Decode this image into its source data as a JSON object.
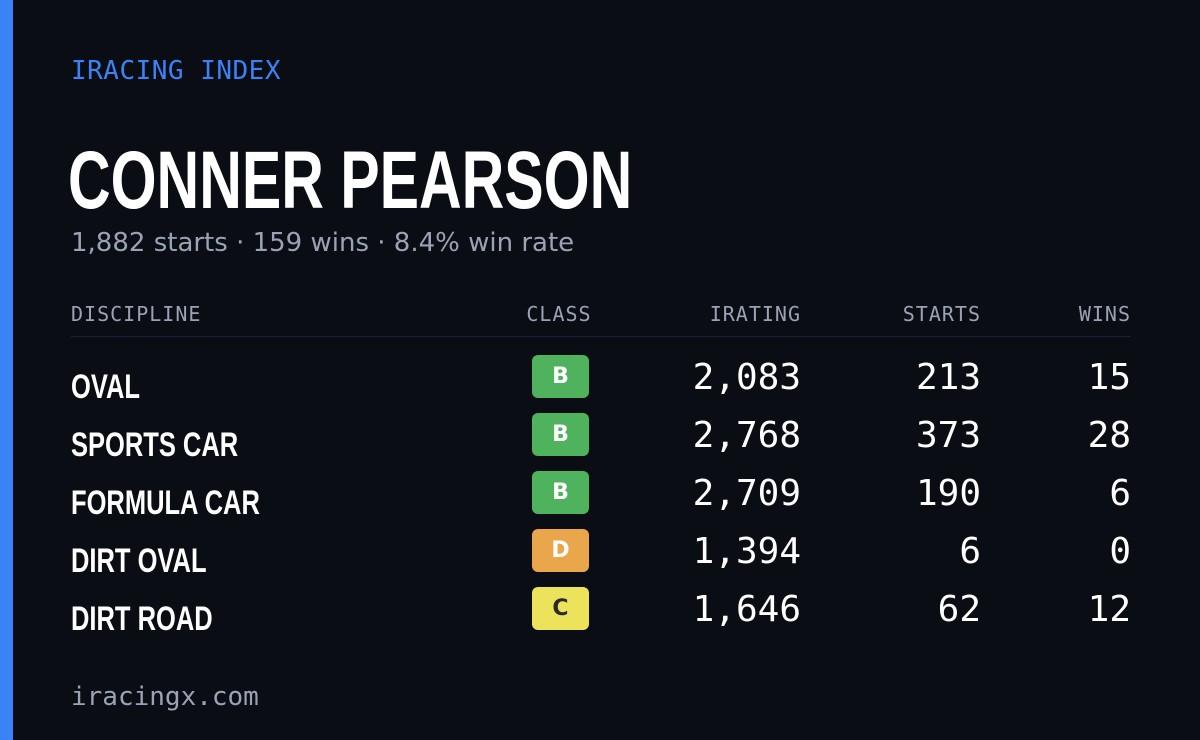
{
  "brand": "IRACING INDEX",
  "driver": {
    "name": "CONNER PEARSON",
    "summary": "1,882 starts · 159 wins · 8.4% win rate"
  },
  "table": {
    "headers": {
      "discipline": "DISCIPLINE",
      "class": "CLASS",
      "irating": "IRATING",
      "starts": "STARTS",
      "wins": "WINS"
    },
    "rows": [
      {
        "discipline": "OVAL",
        "class": "B",
        "class_color": "#4fb35e",
        "class_text_color": "#ffffff",
        "irating": "2,083",
        "starts": "213",
        "wins": "15"
      },
      {
        "discipline": "SPORTS CAR",
        "class": "B",
        "class_color": "#4fb35e",
        "class_text_color": "#ffffff",
        "irating": "2,768",
        "starts": "373",
        "wins": "28"
      },
      {
        "discipline": "FORMULA CAR",
        "class": "B",
        "class_color": "#4fb35e",
        "class_text_color": "#ffffff",
        "irating": "2,709",
        "starts": "190",
        "wins": "6"
      },
      {
        "discipline": "DIRT OVAL",
        "class": "D",
        "class_color": "#e9a64a",
        "class_text_color": "#ffffff",
        "irating": "1,394",
        "starts": "6",
        "wins": "0"
      },
      {
        "discipline": "DIRT ROAD",
        "class": "C",
        "class_color": "#ece35a",
        "class_text_color": "#2a2a2a",
        "irating": "1,646",
        "starts": "62",
        "wins": "12"
      }
    ]
  },
  "footer": "iracingx.com",
  "colors": {
    "background": "#0b0d14",
    "accent": "#3b82f6",
    "muted_text": "#9aa3b5"
  }
}
